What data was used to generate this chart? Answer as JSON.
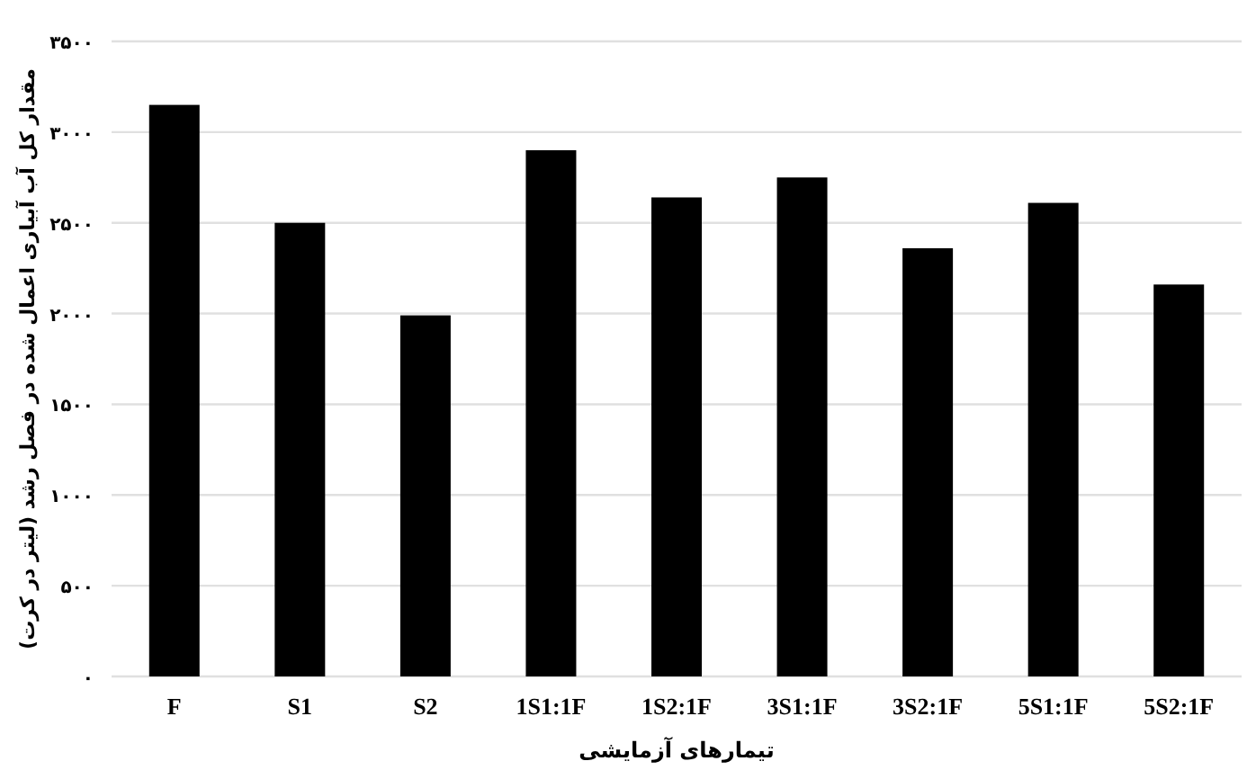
{
  "chart_data": {
    "type": "bar",
    "xlabel": "تیمارهای آزمایشی",
    "ylabel": "مقدار کل آب آبیاری اعمال شده در فصل رشد (لیتر در کرت)",
    "categories": [
      "F",
      "S1",
      "S2",
      "1S1:1F",
      "1S2:1F",
      "3S1:1F",
      "3S2:1F",
      "5S1:1F",
      "5S2:1F"
    ],
    "values": [
      3150,
      2500,
      1990,
      2900,
      2640,
      2750,
      2360,
      2610,
      2160
    ],
    "color": "#000000",
    "ylim": [
      0,
      3500
    ],
    "yticks": [
      {
        "value": 0,
        "label": "۰"
      },
      {
        "value": 500,
        "label": "۵۰۰"
      },
      {
        "value": 1000,
        "label": "۱۰۰۰"
      },
      {
        "value": 1500,
        "label": "۱۵۰۰"
      },
      {
        "value": 2000,
        "label": "۲۰۰۰"
      },
      {
        "value": 2500,
        "label": "۲۵۰۰"
      },
      {
        "value": 3000,
        "label": "۳۰۰۰"
      },
      {
        "value": 3500,
        "label": "۳۵۰۰"
      }
    ],
    "grid": true
  }
}
